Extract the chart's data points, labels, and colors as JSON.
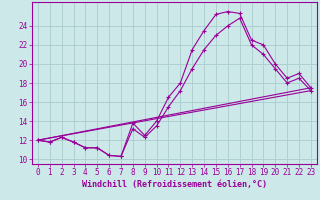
{
  "background_color": "#cce8e8",
  "grid_color": "#aacccc",
  "line_color": "#990099",
  "marker_color": "#990099",
  "xlabel": "Windchill (Refroidissement éolien,°C)",
  "xlabel_fontsize": 6,
  "tick_fontsize": 5.5,
  "xlim": [
    -0.5,
    23.5
  ],
  "ylim": [
    9.5,
    26.5
  ],
  "yticks": [
    10,
    12,
    14,
    16,
    18,
    20,
    22,
    24
  ],
  "xticks": [
    0,
    1,
    2,
    3,
    4,
    5,
    6,
    7,
    8,
    9,
    10,
    11,
    12,
    13,
    14,
    15,
    16,
    17,
    18,
    19,
    20,
    21,
    22,
    23
  ],
  "line1_x": [
    0,
    1,
    2,
    3,
    4,
    5,
    6,
    7,
    8,
    9,
    10,
    11,
    12,
    13,
    14,
    15,
    16,
    17,
    18,
    19,
    20,
    21,
    22,
    23
  ],
  "line1_y": [
    12.0,
    11.8,
    12.3,
    11.8,
    11.2,
    11.2,
    10.4,
    10.3,
    13.8,
    12.5,
    14.0,
    16.5,
    18.0,
    21.5,
    23.5,
    25.2,
    25.5,
    25.3,
    22.5,
    22.0,
    20.0,
    18.5,
    19.0,
    17.5
  ],
  "line2_x": [
    0,
    1,
    2,
    3,
    4,
    5,
    6,
    7,
    8,
    9,
    10,
    11,
    12,
    13,
    14,
    15,
    16,
    17,
    18,
    19,
    20,
    21,
    22,
    23
  ],
  "line2_y": [
    12.0,
    11.8,
    12.3,
    11.8,
    11.2,
    11.2,
    10.4,
    10.3,
    13.2,
    12.3,
    13.5,
    15.5,
    17.2,
    19.5,
    21.5,
    23.0,
    24.0,
    24.8,
    22.0,
    21.0,
    19.5,
    18.0,
    18.5,
    17.2
  ],
  "line3_x": [
    0,
    23
  ],
  "line3_y": [
    12.0,
    17.5
  ],
  "line4_x": [
    0,
    23
  ],
  "line4_y": [
    12.0,
    17.2
  ]
}
